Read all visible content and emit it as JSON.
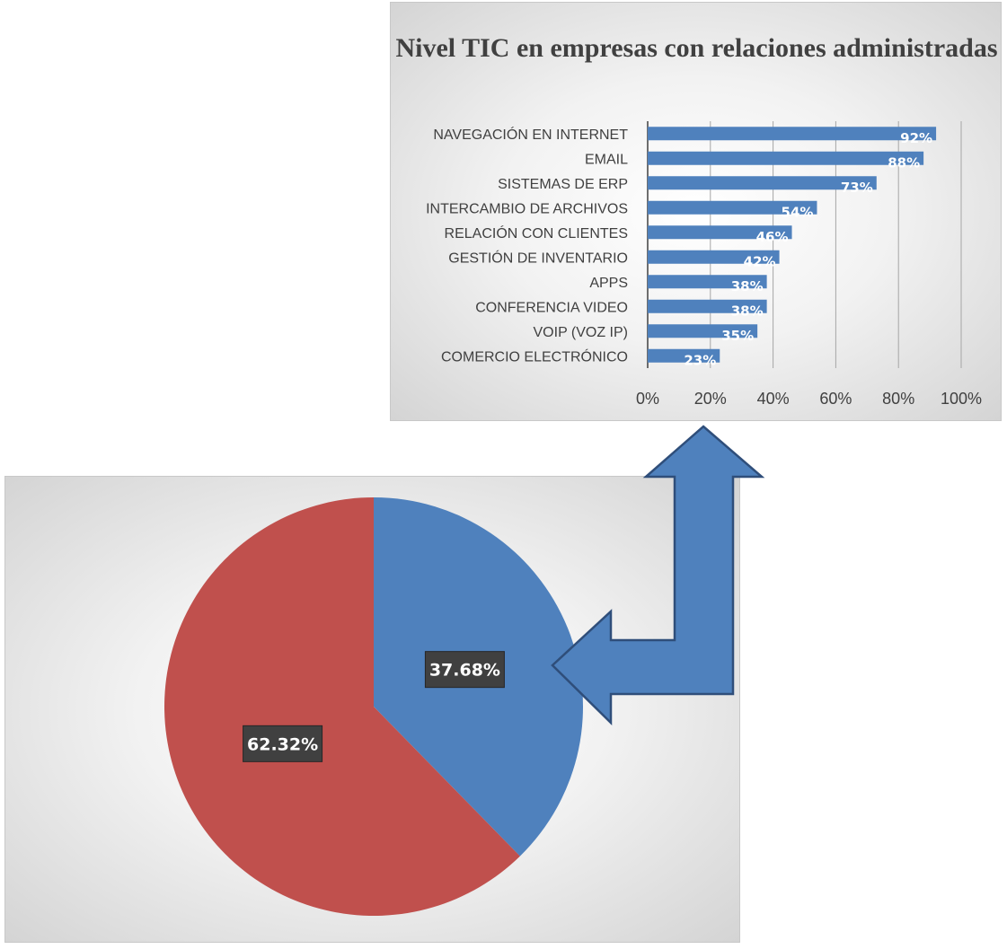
{
  "chart_data": [
    {
      "type": "bar",
      "orientation": "horizontal",
      "title": "Nivel TIC en empresas con relaciones administradas",
      "categories": [
        "NAVEGACIÓN EN INTERNET",
        "EMAIL",
        "SISTEMAS DE ERP",
        "INTERCAMBIO DE ARCHIVOS",
        "RELACIÓN CON CLIENTES",
        "GESTIÓN DE INVENTARIO",
        "APPS",
        "CONFERENCIA VIDEO",
        "VOIP  (VOZ IP)",
        "COMERCIO ELECTRÓNICO"
      ],
      "values": [
        92,
        88,
        73,
        54,
        46,
        42,
        38,
        38,
        35,
        23
      ],
      "value_labels": [
        "92%",
        "88%",
        "73%",
        "54%",
        "46%",
        "42%",
        "38%",
        "38%",
        "35%",
        "23%"
      ],
      "xlim": [
        0,
        100
      ],
      "xticks": [
        0,
        20,
        40,
        60,
        80,
        100
      ],
      "xtick_labels": [
        "0%",
        "20%",
        "40%",
        "60%",
        "80%",
        "100%"
      ],
      "grid": true,
      "bar_color": "#4f81bd"
    },
    {
      "type": "pie",
      "values": [
        37.68,
        62.32
      ],
      "value_labels": [
        "37.68%",
        "62.32%"
      ],
      "colors": [
        "#4f81bd",
        "#c0504d"
      ],
      "label_box_color": "#404040"
    }
  ],
  "annotation": {
    "type": "arrow",
    "color": "#4f81bd",
    "outline": "#2f4e7a",
    "icon": "bent-double-arrow"
  }
}
